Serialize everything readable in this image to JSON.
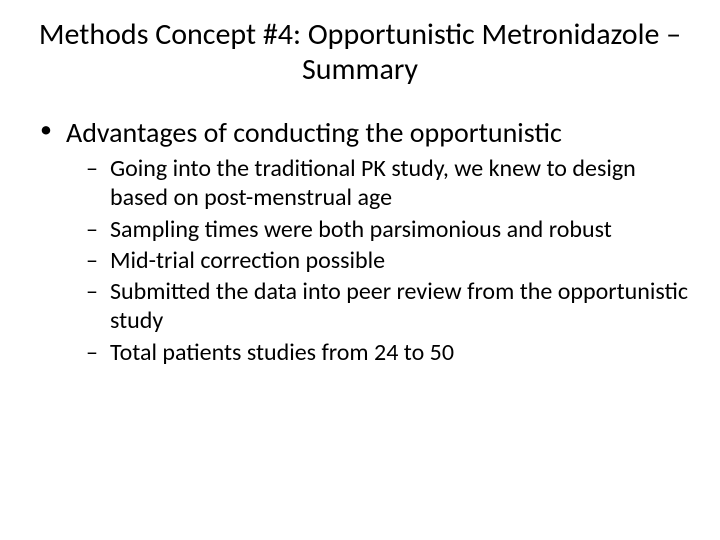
{
  "slide": {
    "title": "Methods Concept #4: Opportunistic Metronidazole – Summary",
    "title_fontsize": 30,
    "background_color": "#ffffff",
    "text_color": "#000000",
    "bullets": [
      {
        "text": "Advantages of conducting the opportunistic",
        "fontsize": 28,
        "sub": [
          {
            "text": "Going into the traditional PK study, we knew to design based on post-menstrual age"
          },
          {
            "text": "Sampling times were both parsimonious and robust"
          },
          {
            "text": "Mid-trial correction possible"
          },
          {
            "text": "Submitted the data into peer review from the opportunistic study"
          },
          {
            "text": "Total patients studies from 24 to 50"
          }
        ],
        "sub_fontsize": 24
      }
    ]
  }
}
